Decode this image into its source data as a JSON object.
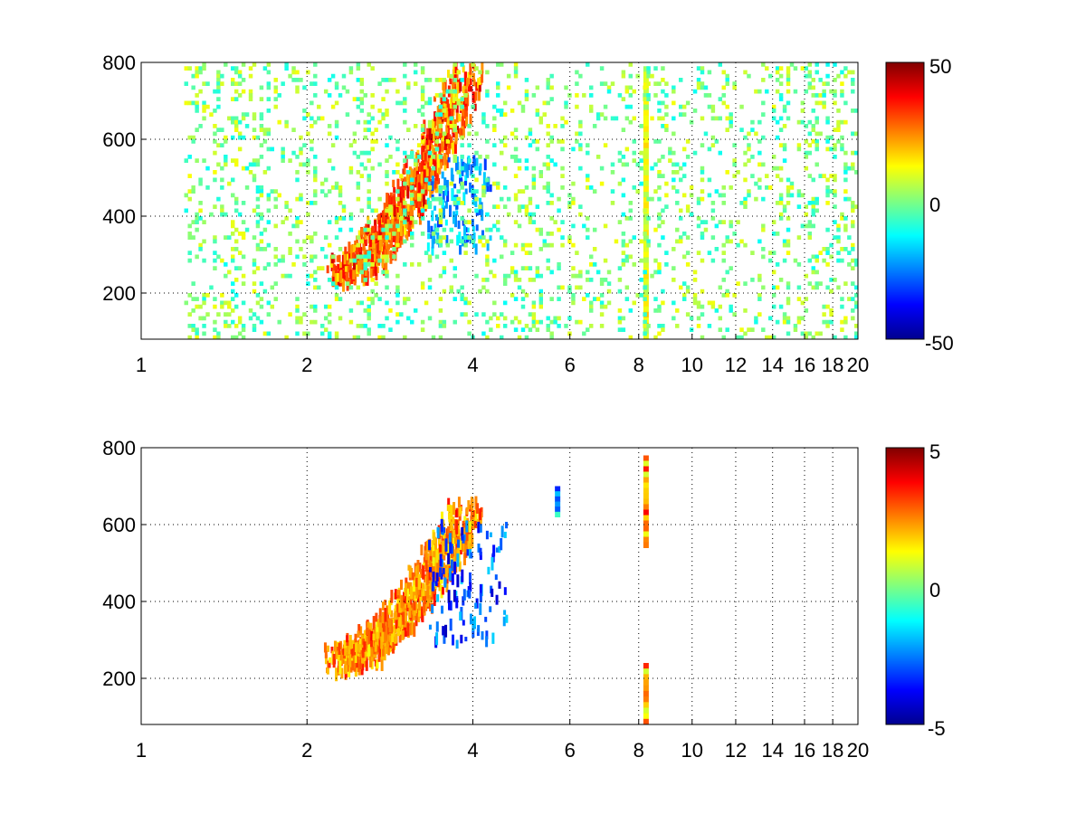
{
  "chart_data": [
    {
      "type": "heatmap",
      "title": "",
      "xlabel": "",
      "ylabel": "",
      "x_scale": "log",
      "xlim": [
        1,
        20
      ],
      "ylim": [
        80,
        800
      ],
      "grid": true,
      "x_ticks": [
        1,
        2,
        4,
        6,
        8,
        10,
        12,
        14,
        16,
        18,
        20
      ],
      "x_tick_labels": [
        "1",
        "2",
        "4",
        "6",
        "8",
        "10",
        "12",
        "14",
        "16",
        "18",
        "20"
      ],
      "y_ticks": [
        200,
        400,
        600,
        800
      ],
      "y_tick_labels": [
        "200",
        "400",
        "600",
        "800"
      ],
      "colorbar": {
        "colormap": "jet",
        "min": -50,
        "max": 50,
        "ticks": [
          -50,
          0,
          50
        ],
        "tick_labels": [
          "-50",
          "0",
          "50"
        ]
      },
      "features": [
        {
          "kind": "band",
          "x_range": [
            2.3,
            3.9
          ],
          "y_start": 270,
          "y_end": 790,
          "value": 35
        },
        {
          "kind": "patch",
          "x_range": [
            3.3,
            4.3
          ],
          "y_range": [
            320,
            560
          ],
          "value": -30
        },
        {
          "kind": "column",
          "x": 8.25,
          "y_range": [
            80,
            790
          ],
          "value": 10
        },
        {
          "kind": "speckle",
          "x_range": [
            1.2,
            20
          ],
          "y_range": [
            80,
            800
          ],
          "value_range": [
            -12,
            12
          ],
          "density": 0.35
        }
      ]
    },
    {
      "type": "heatmap",
      "title": "",
      "xlabel": "",
      "ylabel": "",
      "x_scale": "log",
      "xlim": [
        1,
        20
      ],
      "ylim": [
        80,
        800
      ],
      "grid": true,
      "x_ticks": [
        1,
        2,
        4,
        6,
        8,
        10,
        12,
        14,
        16,
        18,
        20
      ],
      "x_tick_labels": [
        "1",
        "2",
        "4",
        "6",
        "8",
        "10",
        "12",
        "14",
        "16",
        "18",
        "20"
      ],
      "y_ticks": [
        200,
        400,
        600,
        800
      ],
      "y_tick_labels": [
        "200",
        "400",
        "600",
        "800"
      ],
      "colorbar": {
        "colormap": "jet",
        "min": -5,
        "max": 5,
        "ticks": [
          -5,
          0,
          5
        ],
        "tick_labels": [
          "-5",
          "0",
          "5"
        ]
      },
      "features": [
        {
          "kind": "band",
          "x_range": [
            2.3,
            3.9
          ],
          "y_start": 260,
          "y_end": 650,
          "value": 3
        },
        {
          "kind": "patch",
          "x_range": [
            3.3,
            4.6
          ],
          "y_range": [
            300,
            620
          ],
          "value": -4
        },
        {
          "kind": "column",
          "x": 8.25,
          "y_range": [
            540,
            780
          ],
          "value": 2
        },
        {
          "kind": "column",
          "x": 8.25,
          "y_range": [
            80,
            240
          ],
          "value": 2
        },
        {
          "kind": "column",
          "x": 5.7,
          "y_range": [
            620,
            700
          ],
          "value": -3
        }
      ]
    }
  ]
}
